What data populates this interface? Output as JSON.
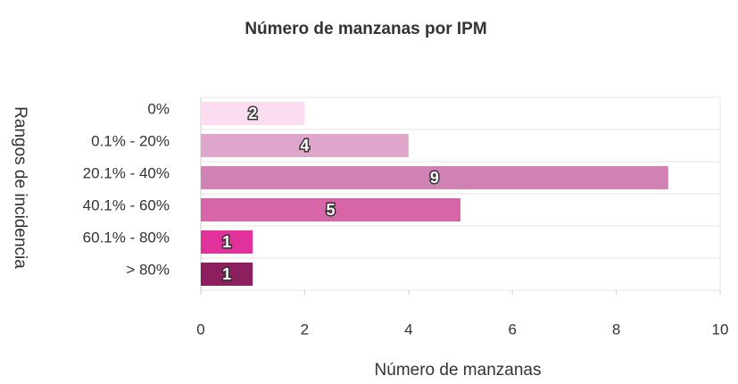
{
  "chart_data": {
    "type": "hbar",
    "title": "Número de manzanas por IPM",
    "x_label": "Número de manzanas",
    "y_label": "Rangos de incidencia",
    "categories": [
      "0%",
      "0.1% - 20%",
      "20.1% - 40%",
      "40.1% - 60%",
      "60.1% - 80%",
      "> 80%"
    ],
    "values": [
      2,
      4,
      9,
      5,
      1,
      1
    ],
    "colors": [
      "#fbdcf0",
      "#dea6ca",
      "#cf82b3",
      "#d766a8",
      "#e0329a",
      "#8c1f5e"
    ],
    "xlim": [
      0,
      10
    ],
    "xticks": [
      0,
      2,
      4,
      6,
      8,
      10
    ]
  }
}
